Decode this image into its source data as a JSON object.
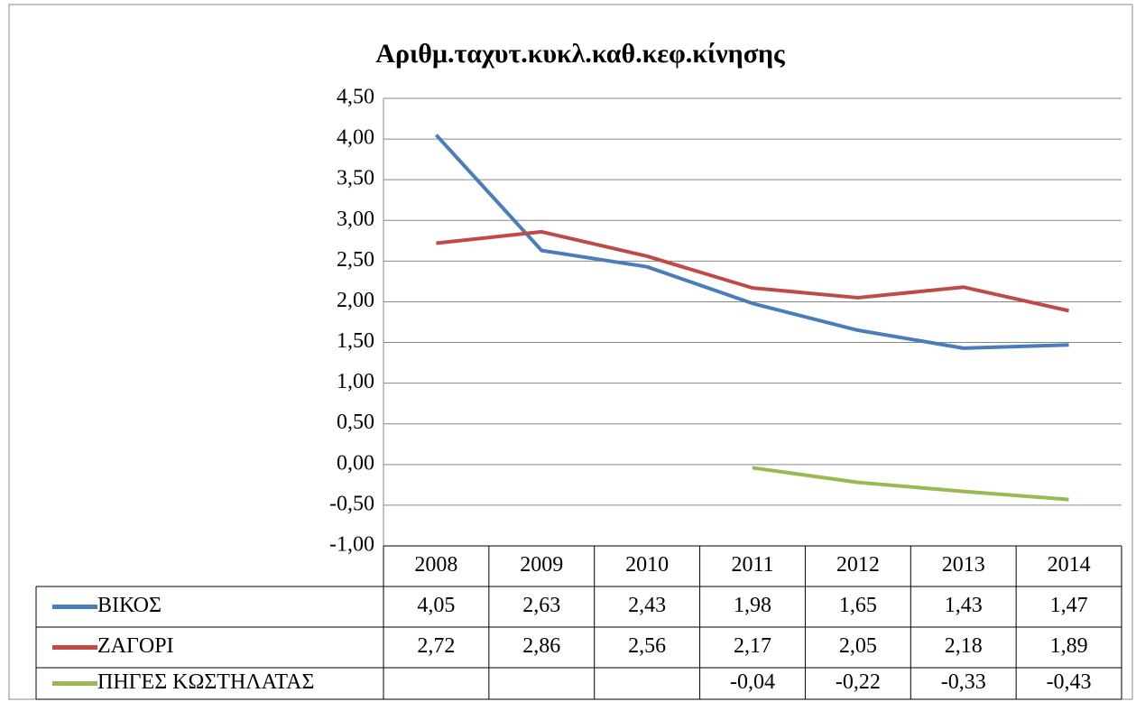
{
  "chart_data": {
    "type": "line",
    "title": "Αριθμ.ταχυτ.κυκλ.καθ.κεφ.κίνησης",
    "categories": [
      "2008",
      "2009",
      "2010",
      "2011",
      "2012",
      "2013",
      "2014"
    ],
    "series": [
      {
        "name": "ΒΙΚΟΣ",
        "color": "#4a7ebb",
        "values": [
          4.05,
          2.63,
          2.43,
          1.98,
          1.65,
          1.43,
          1.47
        ],
        "value_labels": [
          "4,05",
          "2,63",
          "2,43",
          "1,98",
          "1,65",
          "1,43",
          "1,47"
        ]
      },
      {
        "name": "ΖΑΓΟΡΙ",
        "color": "#be4b48",
        "values": [
          2.72,
          2.86,
          2.56,
          2.17,
          2.05,
          2.18,
          1.89
        ],
        "value_labels": [
          "2,72",
          "2,86",
          "2,56",
          "2,17",
          "2,05",
          "2,18",
          "1,89"
        ]
      },
      {
        "name": "ΠΗΓΕΣ ΚΩΣΤΗΛΑΤΑΣ",
        "color": "#98b954",
        "values": [
          null,
          null,
          null,
          -0.04,
          -0.22,
          -0.33,
          -0.43
        ],
        "value_labels": [
          null,
          null,
          null,
          "-0,04",
          "-0,22",
          "-0,33",
          "-0,43"
        ]
      }
    ],
    "ylim": [
      -1,
      4.5
    ],
    "yticks": [
      {
        "value": -1,
        "label": "-1,00"
      },
      {
        "value": -0.5,
        "label": "-0,50"
      },
      {
        "value": 0,
        "label": "0,00"
      },
      {
        "value": 0.5,
        "label": "0,50"
      },
      {
        "value": 1,
        "label": "1,00"
      },
      {
        "value": 1.5,
        "label": "1,50"
      },
      {
        "value": 2,
        "label": "2,00"
      },
      {
        "value": 2.5,
        "label": "2,50"
      },
      {
        "value": 3,
        "label": "3,00"
      },
      {
        "value": 3.5,
        "label": "3,50"
      },
      {
        "value": 4,
        "label": "4,00"
      },
      {
        "value": 4.5,
        "label": "4,50"
      }
    ],
    "grid": true,
    "legend": "table"
  }
}
